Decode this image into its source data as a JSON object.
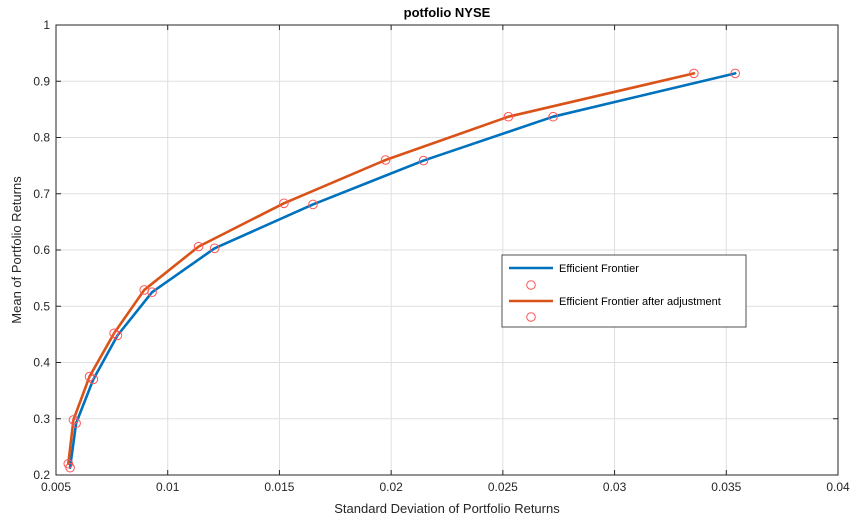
{
  "chart_data": {
    "type": "line",
    "title": "potfolio NYSE",
    "xlabel": "Standard Deviation of Portfolio Returns",
    "ylabel": "Mean of Portfolio Returns",
    "xlim": [
      0.005,
      0.04
    ],
    "ylim": [
      0.2,
      1.0
    ],
    "xticks": [
      0.005,
      0.01,
      0.015,
      0.02,
      0.025,
      0.03,
      0.035,
      0.04
    ],
    "xtick_labels": [
      "0.005",
      "0.01",
      "0.015",
      "0.02",
      "0.025",
      "0.03",
      "0.035",
      "0.04"
    ],
    "yticks": [
      0.2,
      0.3,
      0.4,
      0.5,
      0.6,
      0.7,
      0.8,
      0.9,
      1.0
    ],
    "ytick_labels": [
      "0.2",
      "0.3",
      "0.4",
      "0.5",
      "0.6",
      "0.7",
      "0.8",
      "0.9",
      "1"
    ],
    "grid": true,
    "legend_position": "center-right",
    "series": [
      {
        "name": "Efficient Frontier",
        "color": "#0072BD",
        "x": [
          0.00563,
          0.0059,
          0.00667,
          0.00775,
          0.0093,
          0.0121,
          0.0165,
          0.02145,
          0.02725,
          0.0354
        ],
        "y": [
          0.213,
          0.292,
          0.37,
          0.448,
          0.525,
          0.603,
          0.681,
          0.759,
          0.837,
          0.914
        ]
      },
      {
        "name": "Efficient Frontier after adjustment",
        "color": "#D95319",
        "x": [
          0.00555,
          0.00578,
          0.0065,
          0.0076,
          0.00895,
          0.01138,
          0.0152,
          0.01975,
          0.02525,
          0.03355
        ],
        "y": [
          0.22,
          0.298,
          0.375,
          0.452,
          0.529,
          0.606,
          0.683,
          0.76,
          0.837,
          0.914
        ]
      }
    ],
    "marker_series": [
      {
        "marker": "circle",
        "color": "#FF5555",
        "series_index": 0
      },
      {
        "marker": "circle",
        "color": "#FF5555",
        "series_index": 1
      }
    ]
  }
}
